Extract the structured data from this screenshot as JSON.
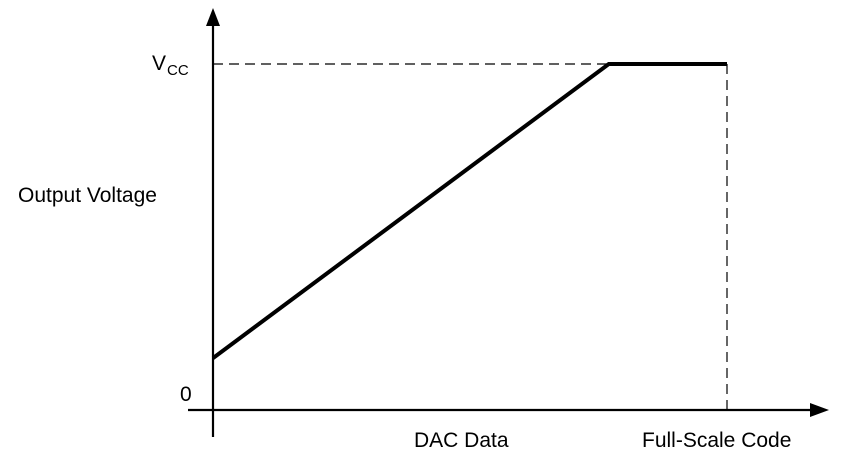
{
  "chart_data": {
    "type": "line",
    "title": "",
    "xlabel": "DAC Data",
    "ylabel": "Output Voltage",
    "x_ticks": [
      {
        "label": "Full-Scale Code",
        "x": 1.0
      }
    ],
    "y_ticks": [
      {
        "label": "0",
        "y": 0
      },
      {
        "label_main": "V",
        "label_sub": "CC",
        "y": 1.0
      }
    ],
    "xlim": [
      0,
      1.0
    ],
    "ylim": [
      0,
      1.0
    ],
    "series": [
      {
        "x": [
          0,
          0.77,
          1.0
        ],
        "y": [
          0.15,
          1.0,
          1.0
        ]
      }
    ],
    "reference_lines": [
      {
        "orientation": "horizontal",
        "y": 1.0,
        "style": "dashed"
      },
      {
        "orientation": "vertical",
        "x": 1.0,
        "style": "dashed"
      }
    ],
    "grid": false,
    "colors": {
      "line": "#000000",
      "axis": "#000000"
    }
  }
}
